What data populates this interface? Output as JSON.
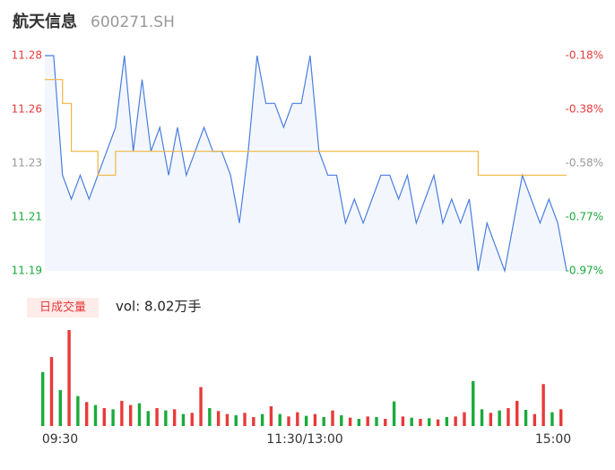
{
  "chart_data": {
    "type": "line",
    "title": "航天信息",
    "subtitle": "600271.SH",
    "xlabels": [
      "09:30",
      "11:30/13:00",
      "15:00"
    ],
    "ylim": [
      11.19,
      11.28
    ],
    "yticks": [
      {
        "value": 11.28,
        "label": "11.28"
      },
      {
        "value": 11.2575,
        "label": "11.26"
      },
      {
        "value": 11.235,
        "label": "11.23"
      },
      {
        "value": 11.2125,
        "label": "11.21"
      },
      {
        "value": 11.19,
        "label": "11.19"
      }
    ],
    "y2ticks": [
      "-0.18%",
      "-0.38%",
      "-0.58%",
      "-0.77%",
      "-0.97%"
    ],
    "ytick_colors": [
      "#e83a3a",
      "#e83a3a",
      "#999999",
      "#1aaa3c",
      "#1aaa3c"
    ],
    "series": [
      {
        "name": "price",
        "color": "#4a7ee0",
        "values": [
          11.28,
          11.28,
          11.23,
          11.22,
          11.23,
          11.22,
          11.23,
          11.24,
          11.25,
          11.28,
          11.24,
          11.27,
          11.24,
          11.25,
          11.23,
          11.25,
          11.23,
          11.24,
          11.25,
          11.24,
          11.24,
          11.23,
          11.21,
          11.24,
          11.28,
          11.26,
          11.26,
          11.25,
          11.26,
          11.26,
          11.28,
          11.24,
          11.23,
          11.23,
          11.21,
          11.22,
          11.21,
          11.22,
          11.23,
          11.23,
          11.22,
          11.23,
          11.21,
          11.22,
          11.23,
          11.21,
          11.22,
          11.21,
          11.22,
          11.19,
          11.21,
          11.2,
          11.19,
          11.21,
          11.23,
          11.22,
          11.21,
          11.22,
          11.21,
          11.19
        ]
      },
      {
        "name": "average",
        "color": "#f0b540",
        "values": [
          11.27,
          11.27,
          11.26,
          11.24,
          11.24,
          11.24,
          11.23,
          11.23,
          11.24,
          11.24,
          11.24,
          11.24,
          11.24,
          11.24,
          11.24,
          11.24,
          11.24,
          11.24,
          11.24,
          11.24,
          11.24,
          11.24,
          11.24,
          11.24,
          11.24,
          11.24,
          11.24,
          11.24,
          11.24,
          11.24,
          11.24,
          11.24,
          11.24,
          11.24,
          11.24,
          11.24,
          11.24,
          11.24,
          11.24,
          11.24,
          11.24,
          11.24,
          11.24,
          11.24,
          11.24,
          11.24,
          11.24,
          11.24,
          11.24,
          11.23,
          11.23,
          11.23,
          11.23,
          11.23,
          11.23,
          11.23,
          11.23,
          11.23,
          11.23,
          11.23
        ]
      }
    ],
    "volume": {
      "label": "日成交量",
      "text": "vol: 8.02万手",
      "ylim": [
        0,
        1600
      ],
      "values": [
        900,
        1150,
        600,
        1600,
        500,
        400,
        350,
        300,
        280,
        420,
        350,
        380,
        250,
        300,
        260,
        280,
        200,
        220,
        650,
        300,
        250,
        200,
        180,
        220,
        150,
        200,
        330,
        200,
        160,
        230,
        170,
        200,
        150,
        260,
        180,
        140,
        120,
        160,
        150,
        120,
        410,
        160,
        140,
        120,
        130,
        110,
        150,
        160,
        230,
        750,
        280,
        220,
        260,
        300,
        420,
        270,
        200,
        700,
        230,
        280
      ],
      "colors": [
        "#1aaa3c",
        "#e83a3a",
        "#1aaa3c",
        "#e83a3a",
        "#1aaa3c",
        "#e83a3a",
        "#1aaa3c",
        "#e83a3a",
        "#1aaa3c",
        "#e83a3a",
        "#e83a3a",
        "#1aaa3c",
        "#1aaa3c",
        "#e83a3a",
        "#1aaa3c",
        "#e83a3a",
        "#1aaa3c",
        "#e83a3a",
        "#e83a3a",
        "#1aaa3c",
        "#e83a3a",
        "#e83a3a",
        "#1aaa3c",
        "#e83a3a",
        "#e83a3a",
        "#1aaa3c",
        "#e83a3a",
        "#1aaa3c",
        "#e83a3a",
        "#e83a3a",
        "#1aaa3c",
        "#e83a3a",
        "#1aaa3c",
        "#e83a3a",
        "#1aaa3c",
        "#e83a3a",
        "#1aaa3c",
        "#e83a3a",
        "#1aaa3c",
        "#e83a3a",
        "#1aaa3c",
        "#e83a3a",
        "#1aaa3c",
        "#e83a3a",
        "#1aaa3c",
        "#e83a3a",
        "#1aaa3c",
        "#e83a3a",
        "#e83a3a",
        "#1aaa3c",
        "#1aaa3c",
        "#e83a3a",
        "#1aaa3c",
        "#e83a3a",
        "#e83a3a",
        "#1aaa3c",
        "#e83a3a",
        "#e83a3a",
        "#1aaa3c",
        "#e83a3a"
      ]
    }
  }
}
